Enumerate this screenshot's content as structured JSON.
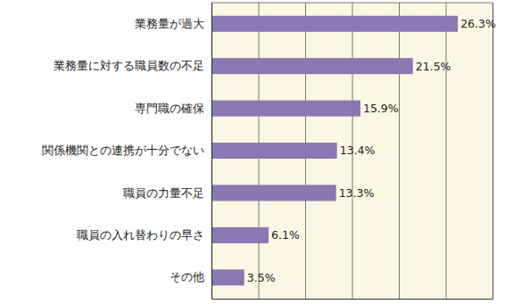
{
  "chart_data": {
    "type": "bar",
    "orientation": "horizontal",
    "categories": [
      "業務量が過大",
      "業務量に対する職員数の不足",
      "専門職の確保",
      "関係機関との連携が十分でない",
      "職員の力量不足",
      "職員の入れ替わりの早さ",
      "その他"
    ],
    "values": [
      26.3,
      21.5,
      15.9,
      13.4,
      13.3,
      6.1,
      3.5
    ],
    "value_labels": [
      "26.3%",
      "21.5%",
      "15.9%",
      "13.4%",
      "13.3%",
      "6.1%",
      "3.5%"
    ],
    "color": "#8b78b3",
    "xlim": [
      0,
      30
    ],
    "xticks": [
      0,
      5,
      10,
      15,
      20,
      25,
      30
    ],
    "grid": true,
    "data_labels": true,
    "tick_labels": "y"
  }
}
